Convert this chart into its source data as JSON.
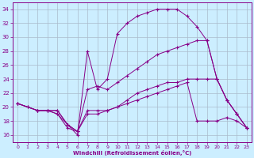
{
  "xlabel": "Windchill (Refroidissement éolien,°C)",
  "bg_color": "#cceeff",
  "grid_color": "#aabbcc",
  "line_color": "#880088",
  "xlim": [
    -0.5,
    23.5
  ],
  "ylim": [
    15,
    35
  ],
  "xticks": [
    0,
    1,
    2,
    3,
    4,
    5,
    6,
    7,
    8,
    9,
    10,
    11,
    12,
    13,
    14,
    15,
    16,
    17,
    18,
    19,
    20,
    21,
    22,
    23
  ],
  "yticks": [
    16,
    18,
    20,
    22,
    24,
    26,
    28,
    30,
    32,
    34
  ],
  "line1_x": [
    0,
    1,
    2,
    3,
    4,
    5,
    6,
    7,
    8,
    9,
    10,
    11,
    12,
    13,
    14,
    15,
    16,
    17,
    18,
    19,
    20,
    21,
    22,
    23
  ],
  "line1_y": [
    20.5,
    20.0,
    19.5,
    19.5,
    19.0,
    17.0,
    16.5,
    19.0,
    19.0,
    19.5,
    20.0,
    21.0,
    22.0,
    22.5,
    23.0,
    23.5,
    23.5,
    24.0,
    24.0,
    24.0,
    24.0,
    21.0,
    19.0,
    17.0
  ],
  "line2_x": [
    0,
    1,
    2,
    3,
    4,
    5,
    6,
    7,
    8,
    9,
    10,
    11,
    12,
    13,
    14,
    15,
    16,
    17,
    18,
    19,
    20,
    21,
    22,
    23
  ],
  "line2_y": [
    20.5,
    20.0,
    19.5,
    19.5,
    19.0,
    17.5,
    16.0,
    28.0,
    22.5,
    24.0,
    30.5,
    32.0,
    33.0,
    33.5,
    34.0,
    34.0,
    34.0,
    33.0,
    31.5,
    29.5,
    24.0,
    21.0,
    19.0,
    17.0
  ],
  "line3_x": [
    0,
    2,
    3,
    4,
    5,
    6,
    7,
    8,
    9,
    10,
    11,
    12,
    13,
    14,
    15,
    16,
    17,
    18,
    19,
    20,
    21,
    22,
    23
  ],
  "line3_y": [
    20.5,
    19.5,
    19.5,
    19.5,
    17.5,
    16.5,
    22.5,
    23.0,
    22.5,
    23.5,
    24.5,
    25.5,
    26.5,
    27.5,
    28.0,
    28.5,
    29.0,
    29.5,
    29.5,
    24.0,
    21.0,
    19.0,
    17.0
  ],
  "line4_x": [
    0,
    2,
    3,
    4,
    5,
    6,
    7,
    8,
    9,
    10,
    11,
    12,
    13,
    14,
    15,
    16,
    17,
    18,
    19,
    20,
    21,
    22,
    23
  ],
  "line4_y": [
    20.5,
    19.5,
    19.5,
    19.5,
    17.5,
    16.5,
    19.5,
    19.5,
    19.5,
    20.0,
    20.5,
    21.0,
    21.5,
    22.0,
    22.5,
    23.0,
    23.5,
    18.0,
    18.0,
    18.0,
    18.5,
    18.0,
    17.0
  ]
}
